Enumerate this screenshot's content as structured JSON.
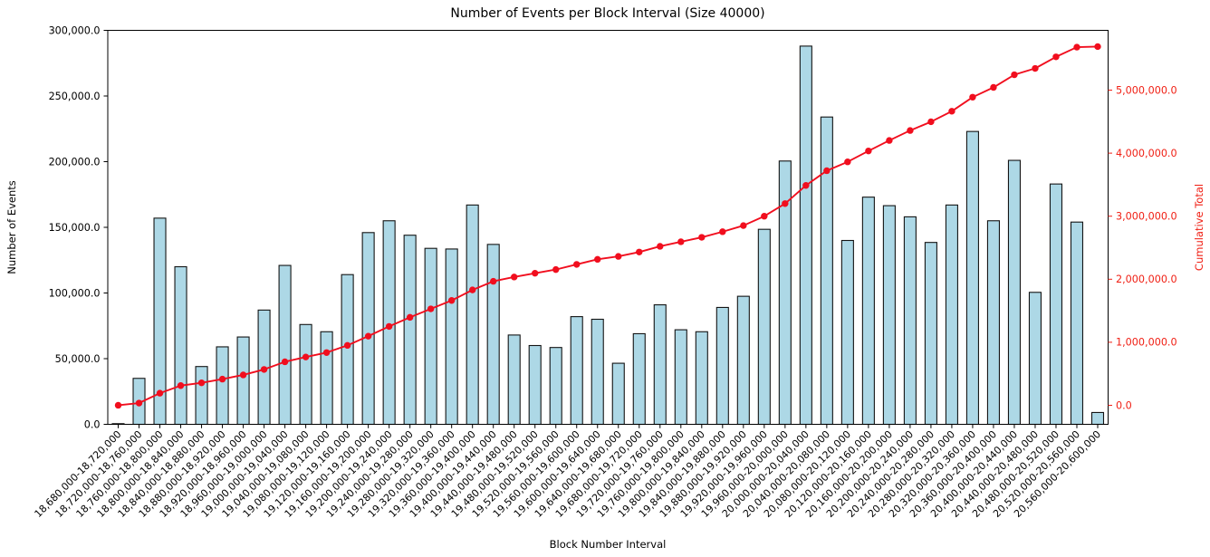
{
  "figure": {
    "background": "#ffffff"
  },
  "chart_data": {
    "type": "bar",
    "title": "Number of Events per Block Interval (Size 40000)",
    "xlabel": "Block Number Interval",
    "ylabel_left": "Number of Events",
    "ylabel_right": "Cumulative Total",
    "grid": false,
    "legend": "none",
    "categories": [
      "18,680,000-18,720,000",
      "18,720,000-18,760,000",
      "18,760,000-18,800,000",
      "18,800,000-18,840,000",
      "18,840,000-18,880,000",
      "18,880,000-18,920,000",
      "18,920,000-18,960,000",
      "18,960,000-19,000,000",
      "19,000,000-19,040,000",
      "19,040,000-19,080,000",
      "19,080,000-19,120,000",
      "19,120,000-19,160,000",
      "19,160,000-19,200,000",
      "19,200,000-19,240,000",
      "19,240,000-19,280,000",
      "19,280,000-19,320,000",
      "19,320,000-19,360,000",
      "19,360,000-19,400,000",
      "19,400,000-19,440,000",
      "19,440,000-19,480,000",
      "19,480,000-19,520,000",
      "19,520,000-19,560,000",
      "19,560,000-19,600,000",
      "19,600,000-19,640,000",
      "19,640,000-19,680,000",
      "19,680,000-19,720,000",
      "19,720,000-19,760,000",
      "19,760,000-19,800,000",
      "19,800,000-19,840,000",
      "19,840,000-19,880,000",
      "19,880,000-19,920,000",
      "19,920,000-19,960,000",
      "19,960,000-20,000,000",
      "20,000,000-20,040,000",
      "20,040,000-20,080,000",
      "20,080,000-20,120,000",
      "20,120,000-20,160,000",
      "20,160,000-20,200,000",
      "20,200,000-20,240,000",
      "20,240,000-20,280,000",
      "20,280,000-20,320,000",
      "20,320,000-20,360,000",
      "20,360,000-20,400,000",
      "20,400,000-20,440,000",
      "20,440,000-20,480,000",
      "20,480,000-20,520,000",
      "20,520,000-20,560,000",
      "20,560,000-20,600,000"
    ],
    "series": [
      {
        "name": "Number of Events",
        "type": "bar",
        "color": "#add8e6",
        "edge_color": "#141414",
        "values": [
          500,
          35000,
          157000,
          120000,
          44000,
          59000,
          66500,
          87000,
          121000,
          76000,
          70500,
          114000,
          146000,
          155000,
          144000,
          134000,
          133500,
          167000,
          137000,
          68000,
          60000,
          58500,
          82000,
          80000,
          46500,
          69000,
          91000,
          72000,
          70500,
          89000,
          97500,
          148500,
          200500,
          288000,
          234000,
          140000,
          173000,
          166500,
          158000,
          138500,
          167000,
          223000,
          155000,
          201000,
          100500,
          183000,
          154000,
          9000
        ]
      },
      {
        "name": "Cumulative Total",
        "type": "line",
        "color": "#f10e1e",
        "marker": "circle",
        "values": [
          500,
          35500,
          192500,
          312500,
          356500,
          415500,
          482000,
          569000,
          690000,
          766000,
          836500,
          950500,
          1096500,
          1251500,
          1395500,
          1529500,
          1663000,
          1830000,
          1967000,
          2035000,
          2095000,
          2153500,
          2235500,
          2315500,
          2362000,
          2431000,
          2522000,
          2594000,
          2664500,
          2753500,
          2851000,
          2999500,
          3200000,
          3488000,
          3722000,
          3862000,
          4035000,
          4201500,
          4359500,
          4498000,
          4665000,
          4888000,
          5043000,
          5244000,
          5344500,
          5527500,
          5681500,
          5690500
        ]
      }
    ],
    "left_axis": {
      "color": "#000000",
      "range": [
        0,
        300000
      ],
      "ticks": [
        0,
        50000,
        100000,
        150000,
        200000,
        250000,
        300000
      ],
      "tick_labels": [
        "0.0",
        "50,000.0",
        "100,000.0",
        "150,000.0",
        "200,000.0",
        "250,000.0",
        "300,000.0"
      ]
    },
    "right_axis": {
      "color": "#f02015",
      "ticks": [
        0,
        1000000,
        2000000,
        3000000,
        4000000,
        5000000
      ],
      "tick_labels": [
        "0.0",
        "1,000,000.0",
        "2,000,000.0",
        "3,000,000.0",
        "4,000,000.0",
        "5,000,000.0"
      ]
    }
  }
}
